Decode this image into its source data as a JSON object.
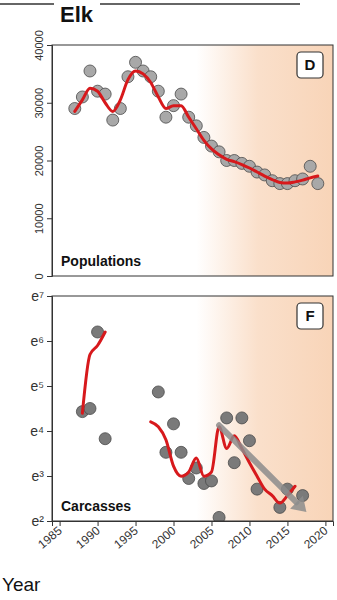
{
  "chart_data": [
    {
      "type": "scatter",
      "title": "Elk",
      "panel_label": "D",
      "annotation": "Populations",
      "xlim": [
        1984,
        2021
      ],
      "ylim": [
        0,
        40000
      ],
      "yticks": [
        0,
        10000,
        20000,
        30000,
        40000
      ],
      "tick_labels": "y",
      "highlight_range": [
        2003,
        2021
      ],
      "series": [
        {
          "type": "scatter",
          "color": "#a8a8a8",
          "marker": "circle",
          "x": [
            1987,
            1988,
            1989,
            1990,
            1991,
            1992,
            1993,
            1994,
            1995,
            1996,
            1997,
            1998,
            1999,
            2000,
            2001,
            2002,
            2003,
            2004,
            2005,
            2006,
            2007,
            2008,
            2009,
            2010,
            2011,
            2012,
            2013,
            2014,
            2015,
            2016,
            2017,
            2018,
            2019
          ],
          "values": [
            29000,
            31000,
            35500,
            32000,
            31500,
            27000,
            29000,
            34500,
            37000,
            35500,
            34500,
            32000,
            27500,
            29500,
            31500,
            27500,
            26000,
            24000,
            22500,
            21500,
            20000,
            20000,
            19500,
            19000,
            18000,
            17500,
            16500,
            16000,
            16000,
            16500,
            16800,
            19000,
            16000
          ]
        },
        {
          "type": "line",
          "color": "#d7191c",
          "line_style": "solid",
          "x": [
            1987,
            1988,
            1989,
            1990,
            1991,
            1992,
            1993,
            1994,
            1995,
            1996,
            1997,
            1998,
            1999,
            2000,
            2001,
            2002,
            2003,
            2004,
            2005,
            2006,
            2007,
            2008,
            2009,
            2010,
            2011,
            2012,
            2013,
            2014,
            2015,
            2016,
            2017,
            2018,
            2019
          ],
          "values": [
            28500,
            30500,
            32500,
            32000,
            30000,
            28500,
            30500,
            34000,
            35500,
            35000,
            33500,
            31000,
            29000,
            29500,
            29500,
            27500,
            25500,
            23500,
            22000,
            21000,
            20200,
            19800,
            19300,
            18700,
            18000,
            17300,
            16700,
            16200,
            16100,
            16300,
            16600,
            17000,
            17300
          ]
        }
      ]
    },
    {
      "type": "scatter",
      "panel_label": "F",
      "annotation": "Carcasses",
      "x_label": "Year",
      "log": "y",
      "xlim": [
        1984,
        2021
      ],
      "xticks": [
        1985,
        1990,
        1995,
        2000,
        2005,
        2010,
        2015,
        2020
      ],
      "ylim": [
        7.389056,
        1096.633158
      ],
      "yticks": [
        {
          "value": 7.389056,
          "label": "e²"
        },
        {
          "value": 20.085537,
          "label": "e³"
        },
        {
          "value": 54.59815,
          "label": "e⁴"
        },
        {
          "value": 148.413159,
          "label": "e⁵"
        },
        {
          "value": 403.428793,
          "label": "e⁶"
        },
        {
          "value": 1096.633158,
          "label": "e⁷"
        }
      ],
      "highlight_range": [
        2003,
        2021
      ],
      "series": [
        {
          "type": "scatter",
          "color": "#7a7a7a",
          "marker": "circle",
          "x": [
            1988,
            1989,
            1990,
            1991,
            1998,
            1999,
            2000,
            2001,
            2002,
            2003,
            2004,
            2005,
            2006,
            2007,
            2008,
            2009,
            2010,
            2011,
            2014,
            2015,
            2017
          ],
          "values": [
            84,
            90,
            493,
            46,
            130,
            34,
            64,
            34,
            19,
            24,
            17,
            18,
            8,
            73,
            27,
            73,
            44,
            15,
            10,
            15,
            13
          ]
        },
        {
          "type": "line",
          "color": "#d7191c",
          "line_style": "solid",
          "x": [
            1988,
            1989,
            1990,
            1991,
            1994,
            1997,
            1998,
            1999,
            2000,
            2001,
            2002,
            2003,
            2004,
            2005,
            2006,
            2007,
            2008,
            2009,
            2010,
            2011,
            2012,
            2013,
            2014,
            2015,
            2016
          ],
          "values": [
            81,
            299,
            365,
            493,
            null,
            67,
            60,
            45,
            25,
            20,
            22,
            30,
            20,
            22,
            60,
            37,
            49,
            37,
            27,
            20,
            15,
            13,
            11,
            13,
            16
          ]
        },
        {
          "type": "arrow",
          "color": "#8c8c8c",
          "x": [
            2006,
            2017.5
          ],
          "values": [
            62,
            9
          ]
        }
      ]
    }
  ]
}
